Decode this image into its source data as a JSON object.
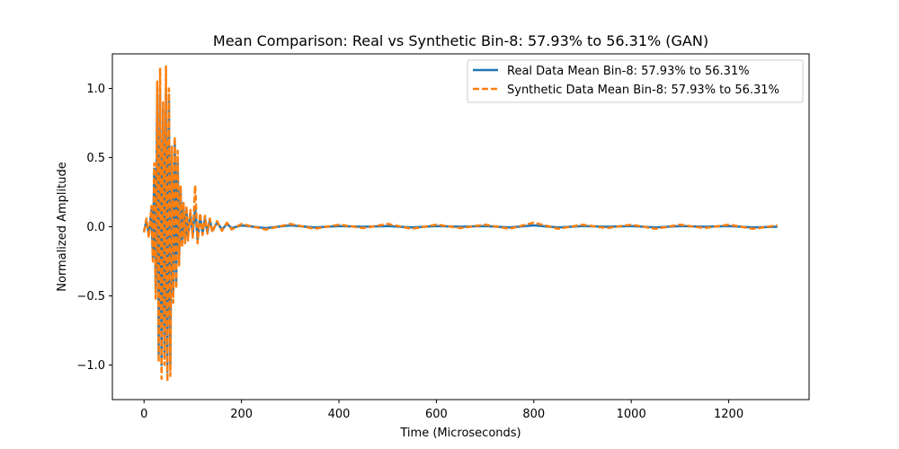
{
  "chart_data": {
    "type": "line",
    "title": "Mean Comparison: Real vs Synthetic Bin-8: 57.93% to 56.31% (GAN)",
    "xlabel": "Time (Microseconds)",
    "ylabel": "Normalized Amplitude",
    "xlim": [
      -65,
      1365
    ],
    "ylim": [
      -1.25,
      1.25
    ],
    "xticks": [
      0,
      200,
      400,
      600,
      800,
      1000,
      1200
    ],
    "xtick_labels": [
      "0",
      "200",
      "400",
      "600",
      "800",
      "1000",
      "1200"
    ],
    "yticks": [
      -1.0,
      -0.5,
      0.0,
      0.5,
      1.0
    ],
    "ytick_labels": [
      "−1.0",
      "−0.5",
      "0.0",
      "0.5",
      "1.0"
    ],
    "grid": false,
    "legend_position": "top-right",
    "series": [
      {
        "name": "Real Data Mean Bin-8: 57.93% to 56.31%",
        "color": "#1f77b4",
        "style": "solid",
        "x": [
          0,
          5,
          10,
          15,
          18,
          21,
          24,
          27,
          30,
          33,
          36,
          39,
          42,
          45,
          48,
          51,
          54,
          57,
          60,
          63,
          66,
          69,
          72,
          75,
          78,
          81,
          84,
          87,
          90,
          95,
          100,
          105,
          110,
          115,
          120,
          125,
          130,
          135,
          140,
          150,
          160,
          170,
          180,
          200,
          250,
          300,
          350,
          400,
          450,
          500,
          550,
          600,
          650,
          700,
          750,
          800,
          850,
          900,
          950,
          1000,
          1050,
          1100,
          1150,
          1200,
          1250,
          1300
        ],
        "y": [
          -0.03,
          0.04,
          -0.06,
          0.12,
          -0.22,
          0.42,
          -0.48,
          1.0,
          -0.92,
          0.96,
          -1.0,
          0.85,
          -0.95,
          1.0,
          -1.05,
          0.95,
          -1.0,
          0.55,
          -0.5,
          0.62,
          -0.4,
          0.5,
          -0.25,
          0.28,
          -0.12,
          0.15,
          -0.1,
          0.12,
          -0.08,
          0.1,
          -0.06,
          0.14,
          -0.1,
          0.08,
          -0.05,
          0.06,
          -0.04,
          0.05,
          -0.03,
          0.03,
          -0.02,
          0.02,
          -0.01,
          0.01,
          -0.01,
          0.01,
          -0.005,
          0.005,
          0.0,
          0.005,
          -0.005,
          0.005,
          0.0,
          0.005,
          -0.005,
          0.01,
          -0.005,
          0.005,
          0.0,
          0.005,
          -0.005,
          0.005,
          0.0,
          0.005,
          -0.005,
          0.0
        ]
      },
      {
        "name": "Synthetic Data Mean Bin-8: 57.93% to 56.31%",
        "color": "#ff7f0e",
        "style": "dashed",
        "x": [
          0,
          5,
          10,
          15,
          18,
          21,
          24,
          27,
          30,
          33,
          36,
          39,
          42,
          45,
          48,
          51,
          54,
          57,
          60,
          63,
          66,
          69,
          72,
          75,
          78,
          81,
          84,
          87,
          90,
          95,
          100,
          105,
          110,
          115,
          120,
          125,
          130,
          135,
          140,
          150,
          160,
          170,
          180,
          200,
          250,
          300,
          350,
          400,
          450,
          500,
          550,
          600,
          650,
          700,
          750,
          800,
          850,
          900,
          950,
          1000,
          1050,
          1100,
          1150,
          1200,
          1250,
          1300
        ],
        "y": [
          -0.04,
          0.06,
          -0.08,
          0.15,
          -0.25,
          0.46,
          -0.52,
          1.05,
          -0.98,
          1.15,
          -1.1,
          0.9,
          -1.0,
          1.16,
          -1.12,
          1.0,
          -1.08,
          0.58,
          -0.55,
          0.65,
          -0.45,
          0.55,
          -0.28,
          0.3,
          -0.15,
          0.18,
          -0.12,
          0.15,
          -0.1,
          0.12,
          -0.08,
          0.3,
          -0.12,
          0.1,
          -0.06,
          0.08,
          -0.05,
          0.06,
          -0.04,
          0.04,
          -0.03,
          0.03,
          -0.02,
          0.02,
          -0.02,
          0.02,
          -0.015,
          0.015,
          -0.01,
          0.02,
          -0.015,
          0.015,
          -0.01,
          0.015,
          -0.015,
          0.03,
          -0.015,
          0.015,
          -0.01,
          0.015,
          -0.015,
          0.015,
          -0.01,
          0.015,
          -0.015,
          0.01
        ]
      }
    ]
  }
}
